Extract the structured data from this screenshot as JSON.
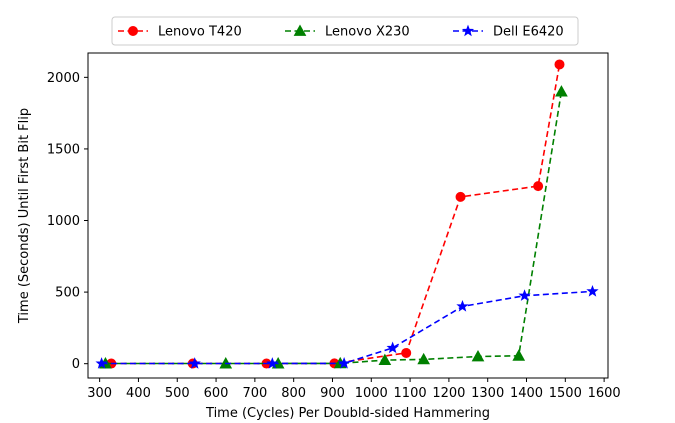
{
  "chart_data": {
    "type": "line",
    "xlabel": "Time (Cycles) Per Doubld-sided Hammering",
    "ylabel": "Time (Seconds) Until First Bit Flip",
    "xlim": [
      270,
      1610
    ],
    "ylim": [
      -100,
      2170
    ],
    "xticks": [
      300,
      400,
      500,
      600,
      700,
      800,
      900,
      1000,
      1100,
      1200,
      1300,
      1400,
      1500,
      1600
    ],
    "yticks": [
      0,
      500,
      1000,
      1500,
      2000
    ],
    "grid": false,
    "legend_position": "top-center",
    "series": [
      {
        "name": "Lenovo T420",
        "color": "#ff0000",
        "marker": "circle",
        "linestyle": "dashed",
        "x": [
          330,
          540,
          730,
          905,
          1090,
          1230,
          1430,
          1485
        ],
        "y": [
          1,
          1,
          1,
          2,
          75,
          1165,
          1240,
          2090
        ]
      },
      {
        "name": "Lenovo X230",
        "color": "#008000",
        "marker": "triangle",
        "linestyle": "dashed",
        "x": [
          315,
          625,
          760,
          920,
          1035,
          1135,
          1275,
          1380,
          1490
        ],
        "y": [
          1,
          1,
          1,
          2,
          25,
          30,
          50,
          55,
          1900
        ]
      },
      {
        "name": "Dell E6420",
        "color": "#0000ff",
        "marker": "star",
        "linestyle": "dashed",
        "x": [
          305,
          545,
          745,
          930,
          1055,
          1235,
          1395,
          1570
        ],
        "y": [
          1,
          1,
          1,
          2,
          110,
          400,
          475,
          505
        ]
      }
    ]
  }
}
